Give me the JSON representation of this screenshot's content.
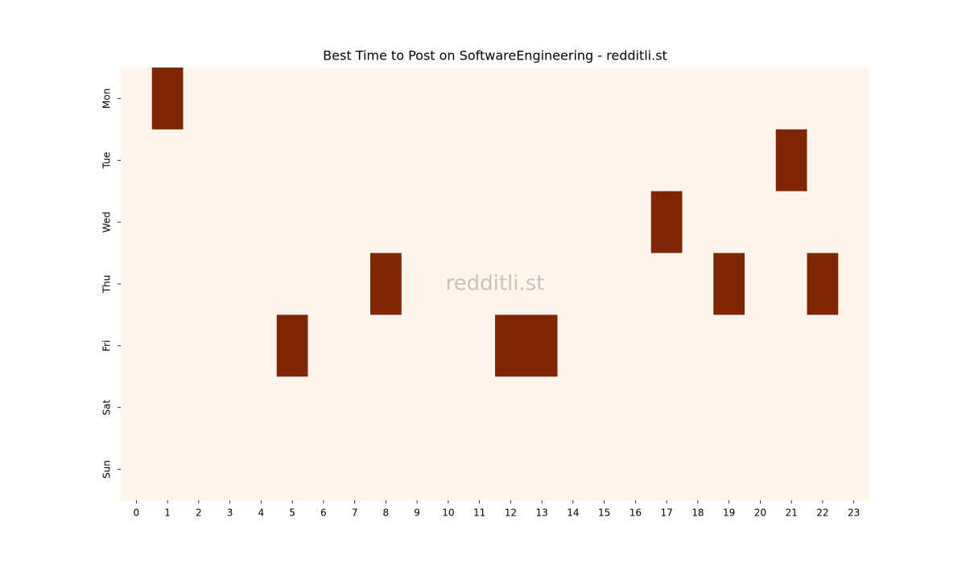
{
  "chart_data": {
    "type": "heatmap",
    "title": "Best Time to Post on SoftwareEngineering - redditli.st",
    "watermark": "redditli.st",
    "x_categories": [
      0,
      1,
      2,
      3,
      4,
      5,
      6,
      7,
      8,
      9,
      10,
      11,
      12,
      13,
      14,
      15,
      16,
      17,
      18,
      19,
      20,
      21,
      22,
      23
    ],
    "y_categories": [
      "Mon",
      "Tue",
      "Wed",
      "Thu",
      "Fri",
      "Sat",
      "Sun"
    ],
    "colors": [
      "#fff5eb",
      "#7f2704"
    ],
    "values": [
      [
        0,
        1,
        0,
        0,
        0,
        0,
        0,
        0,
        0,
        0,
        0,
        0,
        0,
        0,
        0,
        0,
        0,
        0,
        0,
        0,
        0,
        0,
        0,
        0
      ],
      [
        0,
        0,
        0,
        0,
        0,
        0,
        0,
        0,
        0,
        0,
        0,
        0,
        0,
        0,
        0,
        0,
        0,
        0,
        0,
        0,
        0,
        1,
        0,
        0
      ],
      [
        0,
        0,
        0,
        0,
        0,
        0,
        0,
        0,
        0,
        0,
        0,
        0,
        0,
        0,
        0,
        0,
        0,
        1,
        0,
        0,
        0,
        0,
        0,
        0
      ],
      [
        0,
        0,
        0,
        0,
        0,
        0,
        0,
        0,
        1,
        0,
        0,
        0,
        0,
        0,
        0,
        0,
        0,
        0,
        0,
        1,
        0,
        0,
        1,
        0
      ],
      [
        0,
        0,
        0,
        0,
        0,
        1,
        0,
        0,
        0,
        0,
        0,
        0,
        1,
        1,
        0,
        0,
        0,
        0,
        0,
        0,
        0,
        0,
        0,
        0
      ],
      [
        0,
        0,
        0,
        0,
        0,
        0,
        0,
        0,
        0,
        0,
        0,
        0,
        0,
        0,
        0,
        0,
        0,
        0,
        0,
        0,
        0,
        0,
        0,
        0
      ],
      [
        0,
        0,
        0,
        0,
        0,
        0,
        0,
        0,
        0,
        0,
        0,
        0,
        0,
        0,
        0,
        0,
        0,
        0,
        0,
        0,
        0,
        0,
        0,
        0
      ]
    ]
  }
}
